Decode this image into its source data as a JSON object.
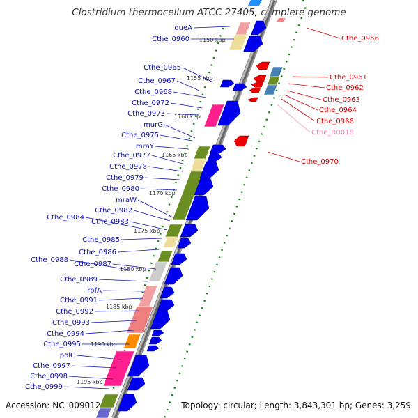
{
  "header": {
    "title": "Clostridium thermocellum ATCC 27405, complete genome"
  },
  "footer": {
    "accession": "Accession: NC_009012",
    "topology": "Topology: circular; Length: 3,843,301 bp; Genes: 3,259"
  },
  "colors": {
    "left_gene_label": "#1010b0",
    "right_gene_label": "#d40000",
    "rna_label": "#ee88bb",
    "forward_arrow": "#0000ee",
    "reverse_arrow": "#ee0000",
    "backbone": "#888888",
    "dots": "#008800"
  },
  "kbp_ticks": [
    "1150 kbp",
    "1155 kbp",
    "1160 kbp",
    "1165 kbp",
    "1170 kbp",
    "1175 kbp",
    "1180 kbp",
    "1185 kbp",
    "1190 kbp",
    "1195 kbp"
  ],
  "left_genes": [
    "queA",
    "Cthe_0960",
    "Cthe_0965",
    "Cthe_0967",
    "Cthe_0968",
    "Cthe_0972",
    "Cthe_0973",
    "murG",
    "Cthe_0975",
    "mraY",
    "Cthe_0977",
    "Cthe_0978",
    "Cthe_0979",
    "Cthe_0980",
    "mraW",
    "Cthe_0982",
    "Cthe_0984",
    "Cthe_0983",
    "Cthe_0985",
    "Cthe_0986",
    "Cthe_0988",
    "Cthe_0987",
    "Cthe_0989",
    "rbfA",
    "Cthe_0991",
    "Cthe_0992",
    "Cthe_0993",
    "Cthe_0994",
    "Cthe_0995",
    "polC",
    "Cthe_0997",
    "Cthe_0998",
    "Cthe_0999"
  ],
  "right_genes": [
    "Cthe_0956",
    "Cthe_0961",
    "Cthe_0962",
    "Cthe_0963",
    "Cthe_0964",
    "Cthe_0966",
    "Cthe_R0018",
    "Cthe_0970"
  ]
}
